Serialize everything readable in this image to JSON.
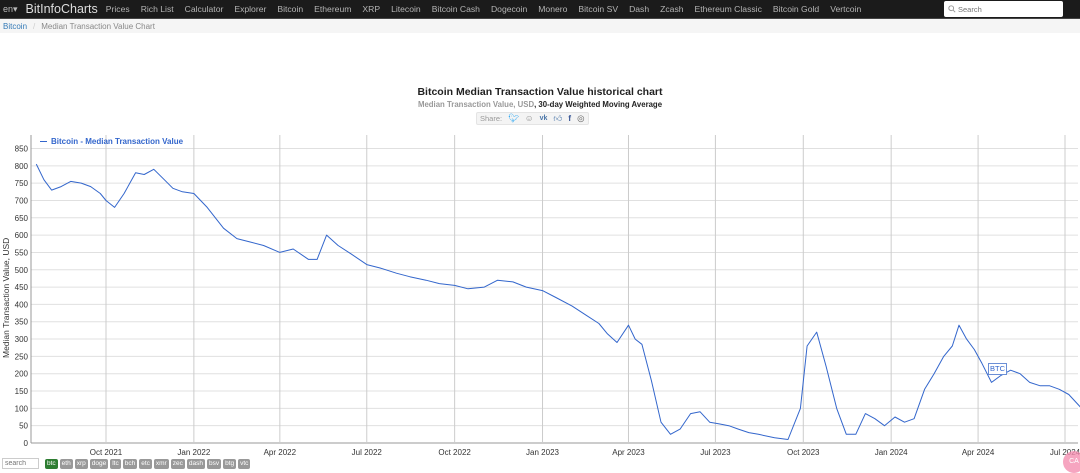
{
  "navbar": {
    "lang": "en▾",
    "brand": "BitInfoCharts",
    "items": [
      "Prices",
      "Rich List",
      "Calculator",
      "Explorer",
      "Bitcoin",
      "Ethereum",
      "XRP",
      "Litecoin",
      "Bitcoin Cash",
      "Dogecoin",
      "Monero",
      "Bitcoin SV",
      "Dash",
      "Zcash",
      "Ethereum Classic",
      "Bitcoin Gold",
      "Vertcoin"
    ],
    "search_placeholder": "Search"
  },
  "breadcrumb": {
    "link": "Bitcoin",
    "separator": "/",
    "current": "Median Transaction Value Chart"
  },
  "header": {
    "title": "Bitcoin Median Transaction Value historical chart",
    "subtitle_gray": "Median Transaction Value, USD",
    "subtitle_dark": ", 30-day Weighted Moving Average",
    "share_label": "Share:",
    "share_icons": [
      "twitter-icon",
      "reddit-icon",
      "vk-icon",
      "like-icon",
      "facebook-icon",
      "weibo-icon"
    ]
  },
  "bottom": {
    "search_placeholder": "search",
    "coins": [
      "btc",
      "eth",
      "xrp",
      "doge",
      "ltc",
      "bch",
      "etc",
      "xmr",
      "zec",
      "dash",
      "bsv",
      "btg",
      "vtc"
    ],
    "active_coin": "btc",
    "badge": "CA"
  },
  "colors": {
    "line": "#3366cc",
    "grid": "#e0e0e0",
    "vgrid": "#cccccc",
    "navbar_bg": "#1b1b1b"
  },
  "chart_data": {
    "type": "line",
    "title": "Bitcoin Median Transaction Value historical chart",
    "subtitle": "Median Transaction Value, USD, 30-day Weighted Moving Average",
    "xlabel": "",
    "ylabel": "Median Transaction Value, USD",
    "ylim": [
      0,
      850
    ],
    "yticks": [
      0,
      50,
      100,
      150,
      200,
      250,
      300,
      350,
      400,
      450,
      500,
      550,
      600,
      650,
      700,
      750,
      800,
      850
    ],
    "xticks": [
      "Oct 2021",
      "Jan 2022",
      "Apr 2022",
      "Jul 2022",
      "Oct 2022",
      "Jan 2023",
      "Apr 2023",
      "Jul 2023",
      "Oct 2023",
      "Jan 2024",
      "Apr 2024",
      "Jul 2024"
    ],
    "grid": true,
    "legend": {
      "position": "top-left",
      "entries": [
        "Bitcoin - Median Transaction Value"
      ]
    },
    "annotations": [
      "BTC"
    ],
    "series": [
      {
        "name": "Bitcoin - Median Transaction Value",
        "x": [
          "2021-07-20",
          "2021-07-28",
          "2021-08-05",
          "2021-08-15",
          "2021-08-25",
          "2021-09-05",
          "2021-09-15",
          "2021-09-25",
          "2021-10-01",
          "2021-10-10",
          "2021-10-20",
          "2021-11-01",
          "2021-11-10",
          "2021-11-20",
          "2021-12-01",
          "2021-12-10",
          "2021-12-20",
          "2022-01-01",
          "2022-01-15",
          "2022-02-01",
          "2022-02-15",
          "2022-03-01",
          "2022-03-15",
          "2022-04-01",
          "2022-04-15",
          "2022-05-01",
          "2022-05-10",
          "2022-05-20",
          "2022-06-01",
          "2022-06-15",
          "2022-07-01",
          "2022-07-15",
          "2022-08-01",
          "2022-08-15",
          "2022-09-01",
          "2022-09-15",
          "2022-10-01",
          "2022-10-15",
          "2022-11-01",
          "2022-11-15",
          "2022-12-01",
          "2022-12-15",
          "2023-01-01",
          "2023-01-15",
          "2023-02-01",
          "2023-02-15",
          "2023-03-01",
          "2023-03-10",
          "2023-03-20",
          "2023-04-01",
          "2023-04-08",
          "2023-04-15",
          "2023-04-25",
          "2023-05-05",
          "2023-05-15",
          "2023-05-25",
          "2023-06-05",
          "2023-06-15",
          "2023-06-25",
          "2023-07-05",
          "2023-07-15",
          "2023-07-25",
          "2023-08-05",
          "2023-08-15",
          "2023-09-01",
          "2023-09-15",
          "2023-09-28",
          "2023-10-05",
          "2023-10-15",
          "2023-10-25",
          "2023-11-05",
          "2023-11-15",
          "2023-11-25",
          "2023-12-05",
          "2023-12-15",
          "2023-12-25",
          "2024-01-05",
          "2024-01-15",
          "2024-01-25",
          "2024-02-05",
          "2024-02-15",
          "2024-02-25",
          "2024-03-05",
          "2024-03-12",
          "2024-03-20",
          "2024-03-28",
          "2024-04-05",
          "2024-04-15",
          "2024-04-25",
          "2024-05-05",
          "2024-05-15",
          "2024-05-25",
          "2024-06-05",
          "2024-06-15",
          "2024-06-25",
          "2024-07-05",
          "2024-07-15",
          "2024-07-25"
        ],
        "values": [
          805,
          760,
          730,
          740,
          755,
          750,
          740,
          720,
          700,
          680,
          720,
          780,
          775,
          790,
          760,
          735,
          725,
          720,
          680,
          620,
          590,
          580,
          570,
          550,
          560,
          530,
          530,
          600,
          570,
          545,
          515,
          505,
          490,
          480,
          470,
          460,
          455,
          445,
          450,
          470,
          465,
          450,
          440,
          420,
          395,
          370,
          345,
          315,
          290,
          340,
          300,
          285,
          180,
          60,
          25,
          40,
          85,
          90,
          60,
          55,
          50,
          40,
          30,
          25,
          15,
          10,
          100,
          280,
          320,
          220,
          100,
          25,
          25,
          85,
          70,
          50,
          75,
          60,
          70,
          155,
          200,
          250,
          280,
          340,
          300,
          270,
          230,
          175,
          195,
          210,
          200,
          175,
          165,
          165,
          155,
          140,
          110,
          80
        ]
      }
    ]
  }
}
